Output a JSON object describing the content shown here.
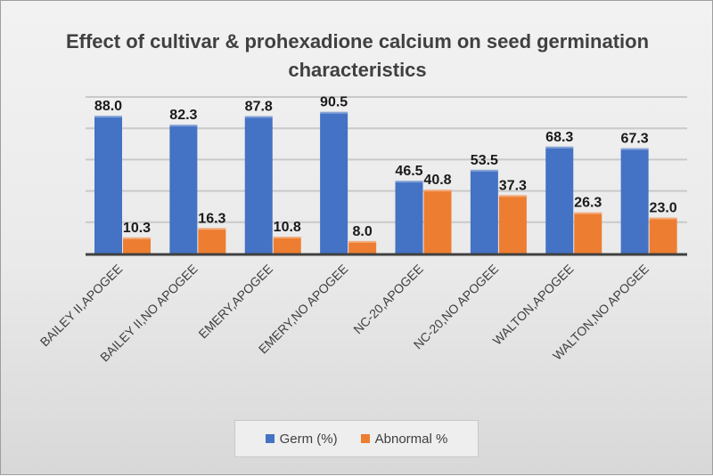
{
  "chart_data": {
    "type": "bar",
    "title": "Effect of cultivar & prohexadione calcium on seed germination characteristics",
    "categories": [
      "BAILEY II,APOGEE",
      "BAILEY II,NO APOGEE",
      "EMERY,APOGEE",
      "EMERY,NO APOGEE",
      "NC-20,APOGEE",
      "NC-20,NO APOGEE",
      "WALTON,APOGEE",
      "WALTON,NO APOGEE"
    ],
    "series": [
      {
        "name": "Germ (%)",
        "color": "#4472c4",
        "values": [
          88.0,
          82.3,
          87.8,
          90.5,
          46.5,
          53.5,
          68.3,
          67.3
        ]
      },
      {
        "name": "Abnormal %",
        "color": "#ed7d31",
        "values": [
          10.3,
          16.3,
          10.8,
          8.0,
          40.8,
          37.3,
          26.3,
          23.0
        ]
      }
    ],
    "ylim": [
      0,
      100
    ],
    "grid": true,
    "legend": "bottom",
    "xlabel": "",
    "ylabel": ""
  }
}
